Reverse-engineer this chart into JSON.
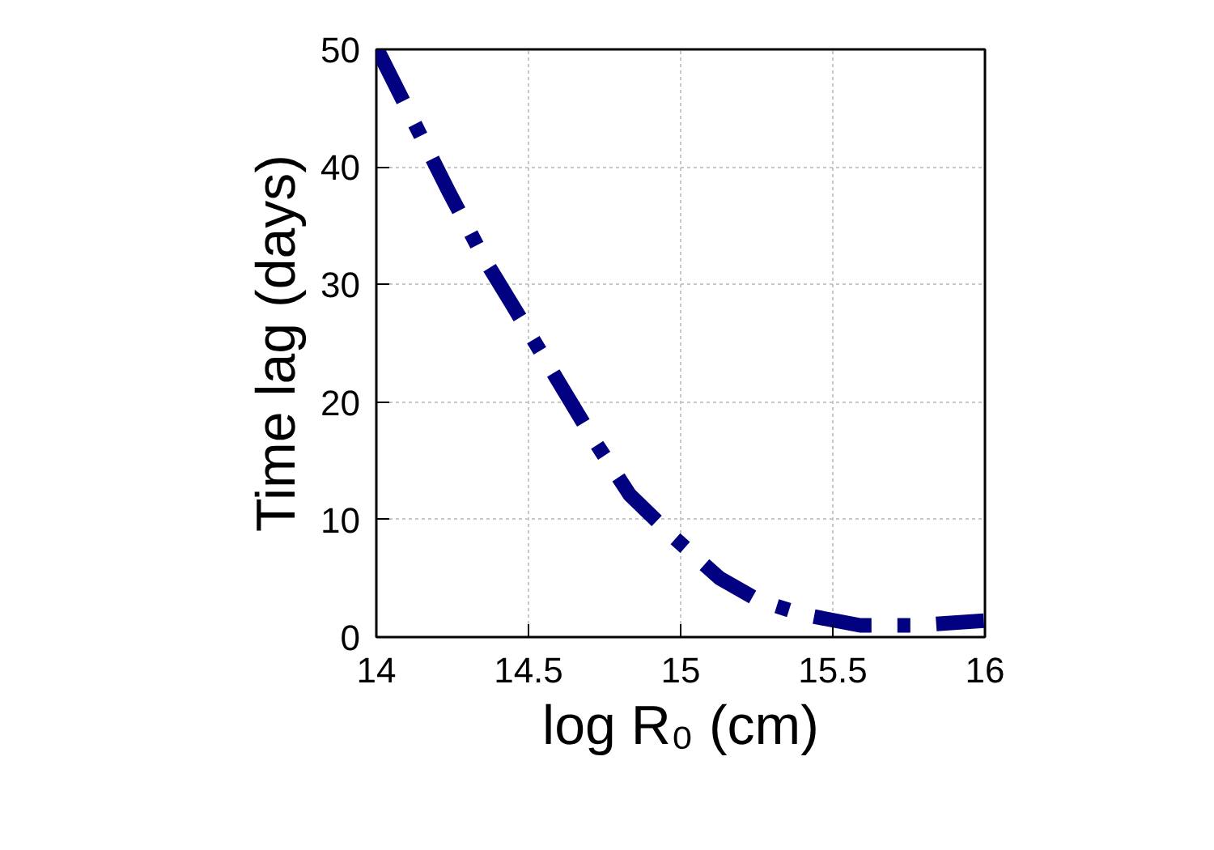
{
  "chart_data": {
    "type": "line",
    "xlabel": "log R₀ (cm)",
    "ylabel": "Time lag (days)",
    "x": [
      14.0,
      14.013,
      14.238,
      14.354,
      14.446,
      14.704,
      14.833,
      14.981,
      15.129,
      15.258,
      15.406,
      15.59,
      15.775,
      15.996
    ],
    "series": [
      {
        "color": "#000080",
        "values": [
          50.0,
          49.5,
          37.9,
          32.2,
          28.3,
          17.2,
          12.1,
          8.4,
          5.0,
          3.1,
          1.9,
          1.0,
          1.0,
          1.4
        ]
      }
    ],
    "xlim": [
      14,
      16
    ],
    "ylim": [
      0,
      50
    ],
    "xticks": [
      14,
      {
        "value": 14.5,
        "label": "14.5"
      },
      15,
      {
        "value": 15.5,
        "label": "15.5"
      },
      16
    ],
    "yticks": [
      0,
      10,
      20,
      30,
      40,
      50
    ],
    "grid": true,
    "line_style": "dashed"
  }
}
